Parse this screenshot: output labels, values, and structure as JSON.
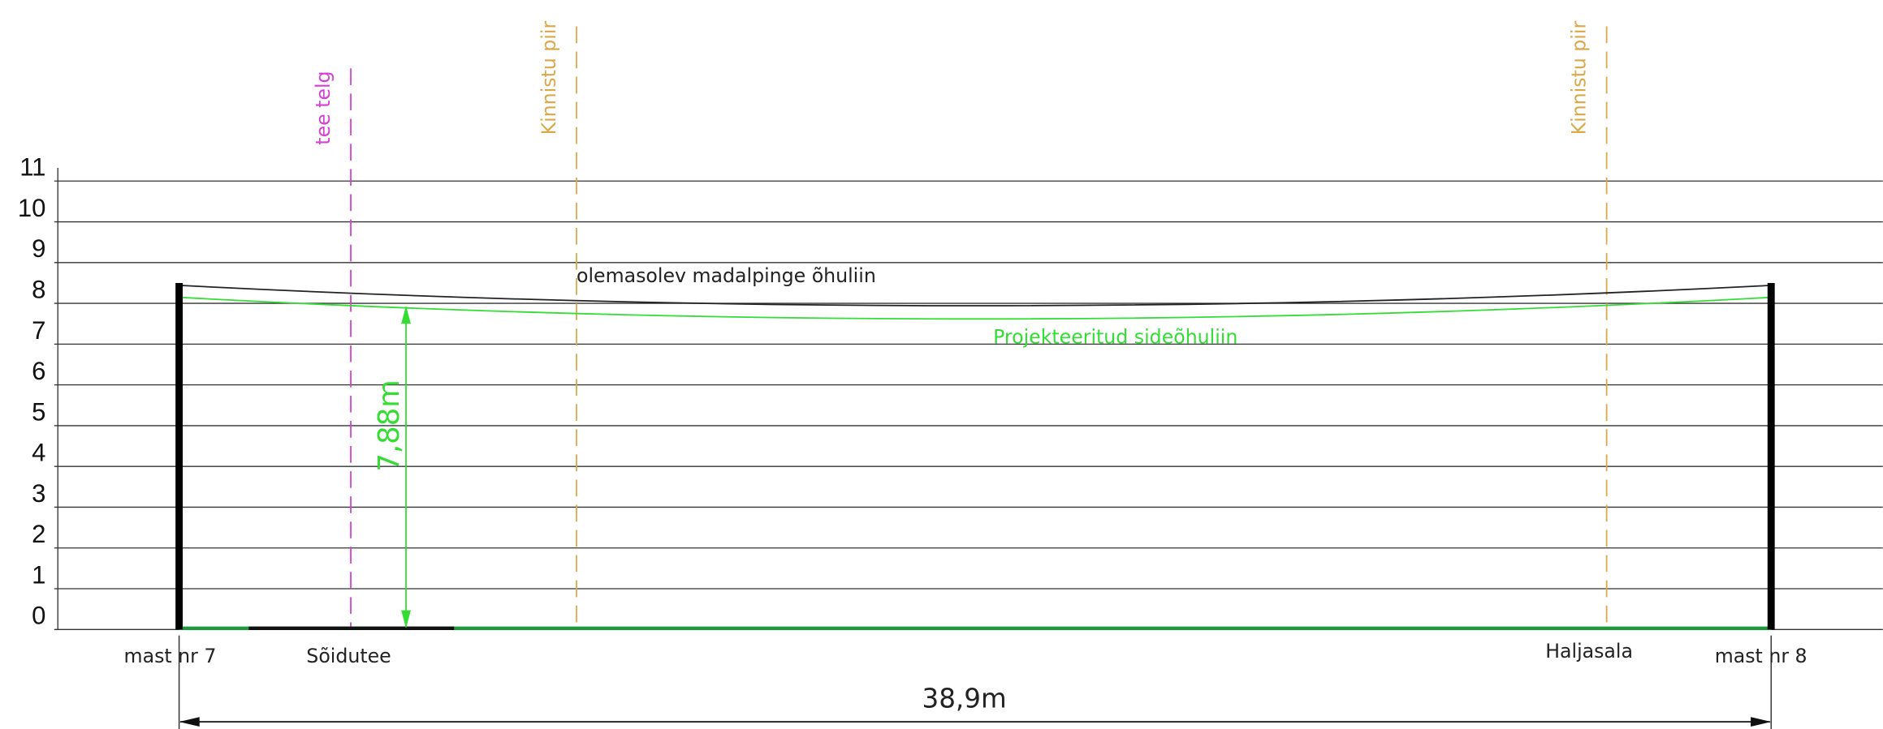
{
  "y_axis": {
    "labels": [
      "0",
      "1",
      "2",
      "3",
      "4",
      "5",
      "6",
      "7",
      "8",
      "9",
      "10",
      "11"
    ]
  },
  "lines": {
    "existing": "olemasolev madalpinge õhuliin",
    "projected": "Projekteeritud sideõhuliin"
  },
  "markers": {
    "road_axis": "tee telg",
    "property_boundary_left": "Kinnistu piir",
    "property_boundary_right": "Kinnistu piir"
  },
  "dimensions": {
    "height": "7,88m",
    "span": "38,9m"
  },
  "ground": {
    "mast_left": "mast nr 7",
    "road": "Sõidutee",
    "green_area": "Haljasala",
    "mast_right": "mast nr 8"
  }
}
